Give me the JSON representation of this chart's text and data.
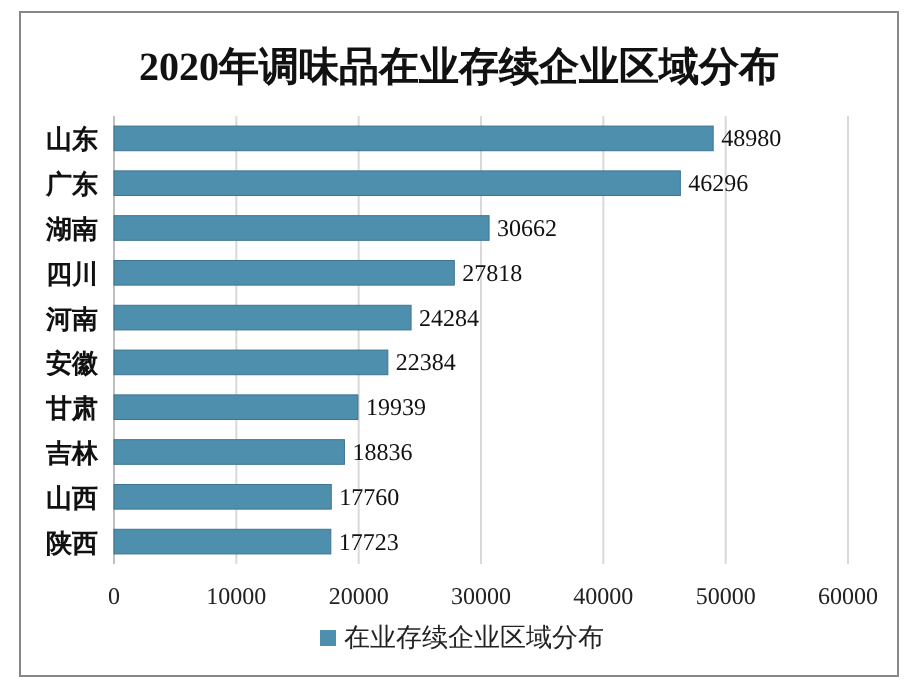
{
  "chart_data": {
    "type": "bar",
    "orientation": "horizontal",
    "title": "2020年调味品在业存续企业区域分布",
    "categories": [
      "山东",
      "广东",
      "湖南",
      "四川",
      "河南",
      "安徽",
      "甘肃",
      "吉林",
      "山西",
      "陕西"
    ],
    "series": [
      {
        "name": "在业存续企业区域分布",
        "color": "#4f8fae",
        "values": [
          48980,
          46296,
          30662,
          27818,
          24284,
          22384,
          19939,
          18836,
          17760,
          17723
        ]
      }
    ],
    "xlim": [
      0,
      60000
    ],
    "xticks": [
      0,
      10000,
      20000,
      30000,
      40000,
      50000,
      60000
    ],
    "grid": "x",
    "legend": "bottom",
    "data_labels": true
  }
}
